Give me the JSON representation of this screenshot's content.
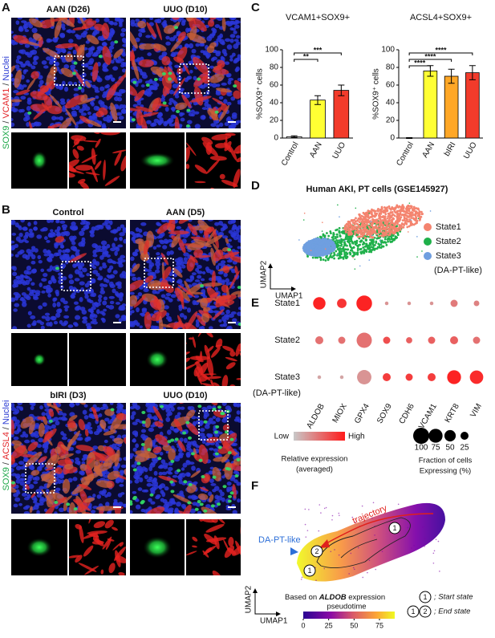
{
  "figure": {
    "A": {
      "label": "A",
      "titles": [
        "AAN (D26)",
        "UUO (D10)"
      ],
      "stain": [
        "SOX9",
        "/",
        "VCAM1",
        "/",
        "Nuclei"
      ],
      "stain_colors": [
        "#1fa84a",
        "#333333",
        "#e3262a",
        "#333333",
        "#2b3bd4"
      ]
    },
    "B": {
      "label": "B",
      "titles": [
        "Control",
        "AAN (D5)",
        "bIRI (D3)",
        "UUO (D10)"
      ],
      "stain": [
        "SOX9",
        "/",
        "ACSL4",
        "/",
        "Nuclei"
      ],
      "stain_colors": [
        "#1fa84a",
        "#333333",
        "#e3262a",
        "#333333",
        "#2b3bd4"
      ]
    },
    "C": {
      "label": "C"
    },
    "D": {
      "label": "D",
      "title": "Human AKI, PT cells (GSE145927)",
      "legend": [
        {
          "name": "State1",
          "color": "#f4846f"
        },
        {
          "name": "State2",
          "color": "#1fb04a"
        },
        {
          "name": "State3",
          "color": "#6f9fe0"
        }
      ],
      "legend_note": "(DA-PT-like)",
      "axis_y": "UMAP2",
      "axis_x": "UMAP1"
    },
    "E": {
      "label": "E"
    },
    "F": {
      "label": "F",
      "trajectory": "trajectory",
      "da_label": "DA-PT-like",
      "states": [
        "1",
        "2",
        "1"
      ],
      "caption": [
        "Based on ",
        "ALDOB",
        " expression"
      ],
      "colorbar_title": "pseudotime",
      "colorbar_lim": [
        0,
        90
      ],
      "colorbar_ticks": [
        0,
        25,
        50,
        75
      ],
      "start": {
        "markers": [
          "1"
        ],
        "label": "; Start state"
      },
      "end": {
        "markers": [
          "1",
          "2"
        ],
        "label": "; End state"
      },
      "axis_y": "UMAP2",
      "axis_x": "UMAP1"
    }
  },
  "chart_data": [
    {
      "type": "bar",
      "title": "VCAM1+SOX9+",
      "y_label": "%SOX9⁺ cells",
      "categories": [
        "Control",
        "AAN",
        "UUO"
      ],
      "values": [
        1.5,
        43,
        54
      ],
      "errors": [
        1,
        5,
        6
      ],
      "colors": [
        "#ffffff",
        "#ffff33",
        "#f23b2b"
      ],
      "ylim": [
        0,
        100
      ],
      "yticks": [
        0,
        20,
        40,
        60,
        80,
        100
      ],
      "significance": [
        "**",
        "***"
      ]
    },
    {
      "type": "bar",
      "title": "ACSL4+SOX9+",
      "y_label": "%SOX9⁺ cells",
      "categories": [
        "Control",
        "AAN",
        "bIRI",
        "UUO"
      ],
      "values": [
        0,
        76,
        70,
        74
      ],
      "errors": [
        0.5,
        6,
        8,
        8
      ],
      "colors": [
        "#ffffff",
        "#ffff33",
        "#ffa726",
        "#f23b2b"
      ],
      "ylim": [
        0,
        100
      ],
      "yticks": [
        0,
        20,
        40,
        60,
        80,
        100
      ],
      "significance": [
        "****",
        "****",
        "****"
      ]
    },
    {
      "type": "dotplot",
      "categories": [
        "ALDOB",
        "MIOX",
        "GPX4",
        "SOX9",
        "CDH6",
        "VCAM1",
        "KRT8",
        "VIM"
      ],
      "clim": [
        0,
        1
      ],
      "series": [
        {
          "name": "State1",
          "values": [
            0.95,
            0.85,
            0.95,
            0.3,
            0.3,
            0.3,
            0.45,
            0.4
          ],
          "sizes": [
            60,
            35,
            95,
            5,
            5,
            5,
            20,
            12
          ]
        },
        {
          "name": "State2",
          "values": [
            0.5,
            0.5,
            0.5,
            0.7,
            0.6,
            0.6,
            0.6,
            0.5
          ],
          "sizes": [
            25,
            20,
            90,
            20,
            15,
            20,
            25,
            20
          ]
        },
        {
          "name": "State3",
          "values": [
            0.2,
            0.2,
            0.3,
            0.8,
            0.8,
            0.8,
            0.95,
            0.9
          ],
          "sizes": [
            5,
            5,
            80,
            25,
            20,
            25,
            75,
            70
          ]
        }
      ],
      "row_note": "(DA-PT-like)",
      "color_legend": {
        "low": "Low",
        "high": "High",
        "title": [
          "Relative expression",
          "(averaged)"
        ],
        "low_color": "#c8c8c8",
        "high_color": "#ff1a1a"
      },
      "size_legend": {
        "values": [
          100,
          75,
          50,
          25
        ],
        "title": [
          "Fraction of cells",
          "Expressing (%)"
        ]
      }
    }
  ]
}
